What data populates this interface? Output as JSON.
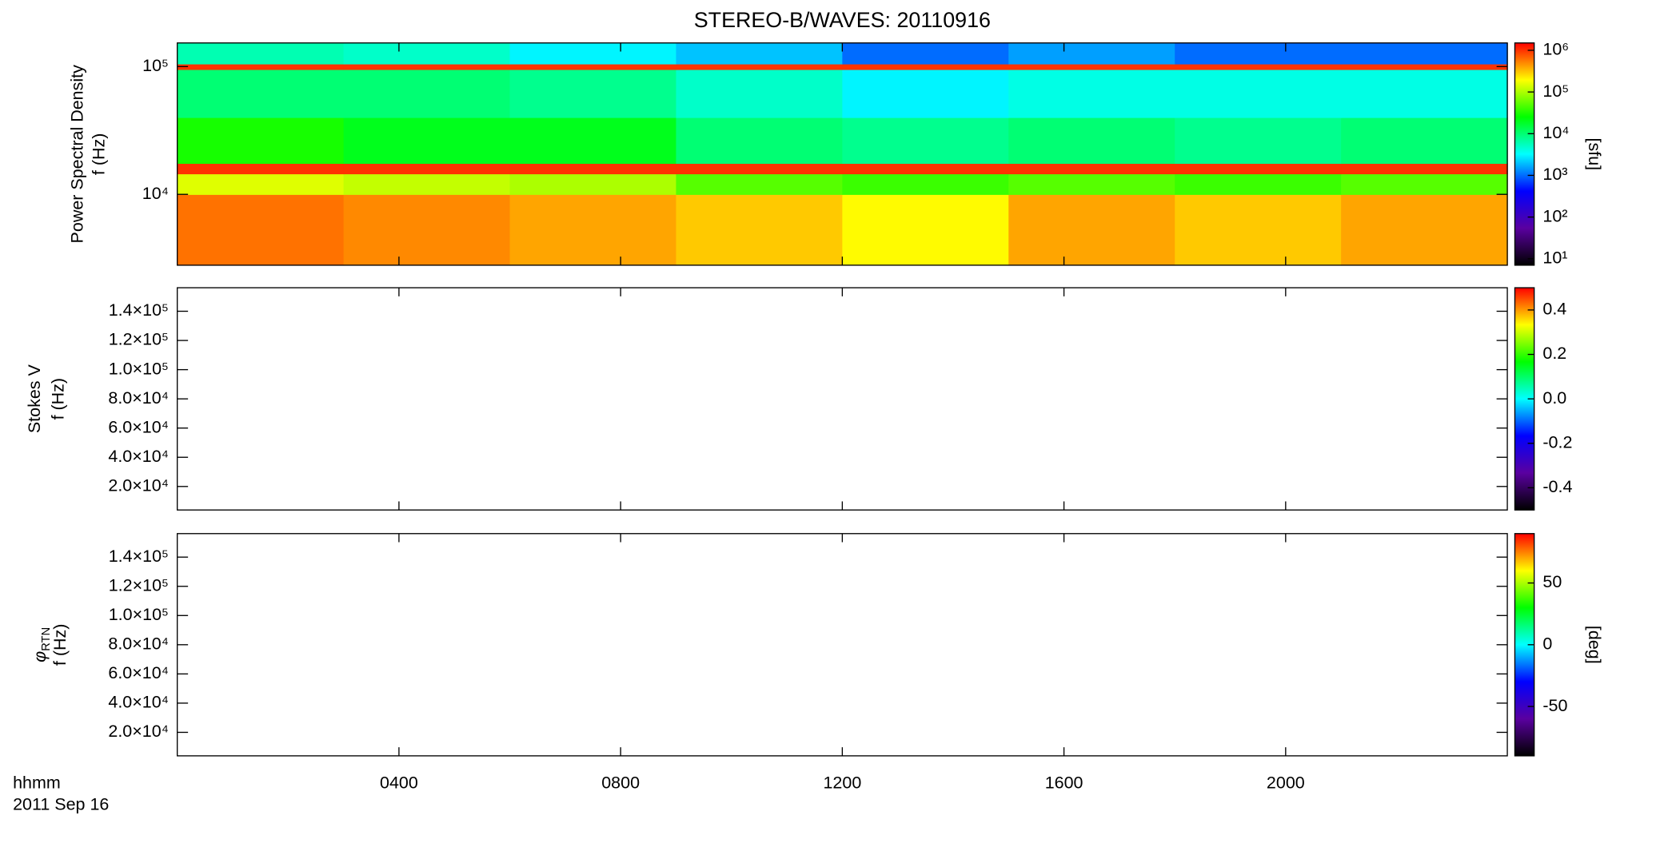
{
  "chart_data": [
    {
      "type": "heatmap",
      "title": "STEREO-B/WAVES: 20110916",
      "ylabel": [
        "Power Spectral Density",
        "f (Hz)"
      ],
      "yscale": "log",
      "ylim": [
        2790,
        153000
      ],
      "yticks": [
        {
          "value": 10000,
          "label": "10⁴"
        },
        {
          "value": 100000,
          "label": "10⁵"
        }
      ],
      "xedges": [
        0,
        3,
        6,
        9,
        12,
        15,
        18,
        21,
        24
      ],
      "yedges": [
        2790,
        10000,
        14500,
        17500,
        40000,
        95000,
        105000,
        153000
      ],
      "z": [
        [
          600000,
          500000,
          400000,
          300000,
          200000,
          400000,
          300000,
          400000
        ],
        [
          150000,
          120000,
          100000,
          50000,
          40000,
          50000,
          40000,
          50000
        ],
        [
          1000000,
          1000000,
          1000000,
          1000000,
          1000000,
          1000000,
          1000000,
          1000000
        ],
        [
          30000,
          20000,
          20000,
          10000,
          8000,
          10000,
          8000,
          10000
        ],
        [
          10000,
          10000,
          8000,
          5000,
          3000,
          4000,
          4000,
          4000
        ],
        [
          1000000,
          1000000,
          1000000,
          1000000,
          1000000,
          1000000,
          1000000,
          1000000
        ],
        [
          6000,
          5000,
          3000,
          2000,
          1000,
          1500,
          1000,
          1000
        ]
      ],
      "zscale": "log",
      "clim": [
        7,
        1500000
      ],
      "cticks": [
        {
          "value": 10,
          "label": "10¹"
        },
        {
          "value": 100,
          "label": "10²"
        },
        {
          "value": 1000,
          "label": "10³"
        },
        {
          "value": 10000,
          "label": "10⁴"
        },
        {
          "value": 100000,
          "label": "10⁵"
        },
        {
          "value": 1000000,
          "label": "10⁶"
        }
      ],
      "zlabel": "[sfu]",
      "colormap": [
        "#000000",
        "#5a00a0",
        "#0000ff",
        "#00ffff",
        "#00ff00",
        "#ffff00",
        "#ff0000"
      ]
    },
    {
      "type": "heatmap",
      "ylabel": [
        "Stokes V",
        "f (Hz)"
      ],
      "ylim": [
        3900,
        156100
      ],
      "yticks": [
        {
          "value": 20000,
          "label": "2.0×10⁴"
        },
        {
          "value": 40000,
          "label": "4.0×10⁴"
        },
        {
          "value": 60000,
          "label": "6.0×10⁴"
        },
        {
          "value": 80000,
          "label": "8.0×10⁴"
        },
        {
          "value": 100000,
          "label": "1.0×10⁵"
        },
        {
          "value": 120000,
          "label": "1.2×10⁵"
        },
        {
          "value": 140000,
          "label": "1.4×10⁵"
        }
      ],
      "clim": [
        -0.5,
        0.5
      ],
      "cticks": [
        {
          "value": -0.4,
          "label": "-0.4"
        },
        {
          "value": -0.2,
          "label": "-0.2"
        },
        {
          "value": 0,
          "label": "0.0"
        },
        0.2,
        0.4
      ],
      "colormap": [
        "#000000",
        "#5a00a0",
        "#0000ff",
        "#00ffff",
        "#00ff00",
        "#ffff00",
        "#ff0000"
      ]
    },
    {
      "type": "heatmap",
      "ylabel": [
        {
          "symbol": "φ",
          "subscript": "RTN"
        },
        "f (Hz)"
      ],
      "ylim": [
        3900,
        156100
      ],
      "yticks": [
        {
          "value": 20000,
          "label": "2.0×10⁴"
        },
        {
          "value": 40000,
          "label": "4.0×10⁴"
        },
        {
          "value": 60000,
          "label": "6.0×10⁴"
        },
        {
          "value": 80000,
          "label": "8.0×10⁴"
        },
        {
          "value": 100000,
          "label": "1.0×10⁵"
        },
        {
          "value": 120000,
          "label": "1.2×10⁵"
        },
        {
          "value": 140000,
          "label": "1.4×10⁵"
        }
      ],
      "clim": [
        -90,
        90
      ],
      "cticks": [
        -50,
        0,
        50
      ],
      "zlabel": "[deg]",
      "colormap": [
        "#000000",
        "#5a00a0",
        "#0000ff",
        "#00ffff",
        "#00ff00",
        "#ffff00",
        "#ff0000"
      ],
      "xlim": [
        0,
        24
      ],
      "xticks": [
        {
          "value": 4,
          "label": "0400"
        },
        {
          "value": 8,
          "label": "0800"
        },
        {
          "value": 12,
          "label": "1200"
        },
        {
          "value": 16,
          "label": "1600"
        },
        {
          "value": 20,
          "label": "2000"
        }
      ],
      "xlabel": [
        "hhmm",
        "2011 Sep 16"
      ]
    }
  ]
}
